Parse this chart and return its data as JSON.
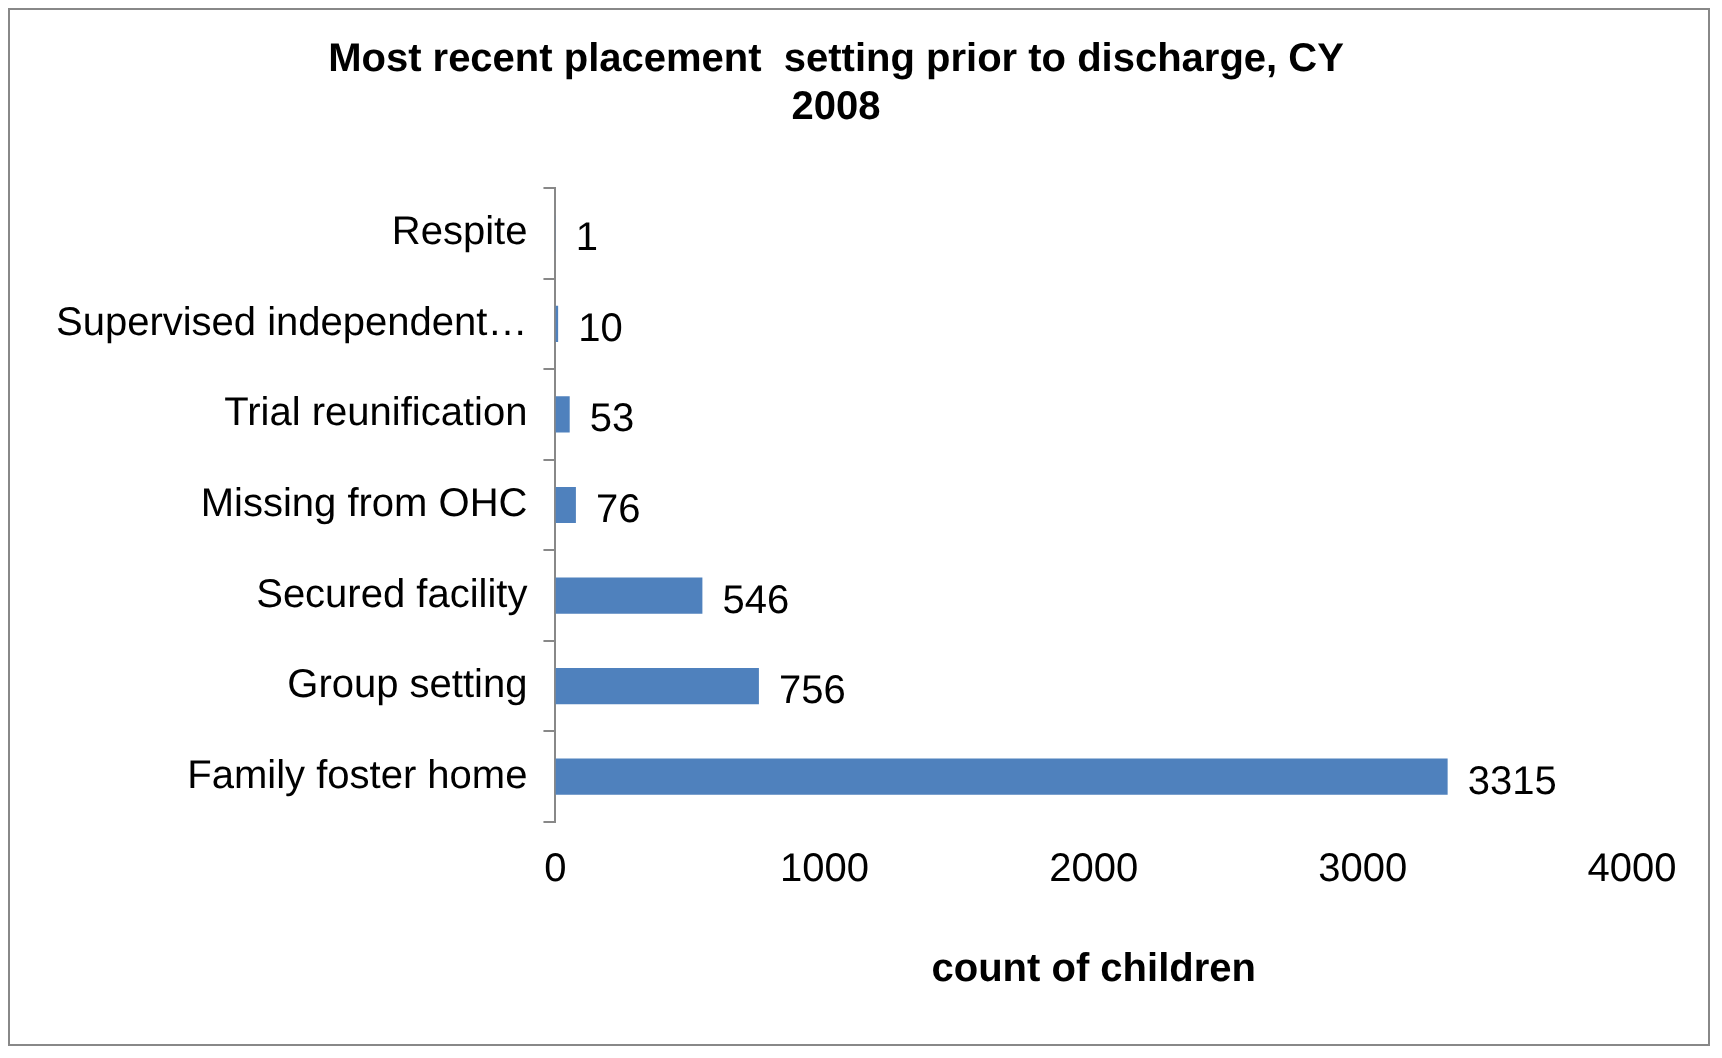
{
  "chart_data": {
    "type": "bar",
    "orientation": "horizontal",
    "title": "Most recent placement  setting prior to discharge, CY 2008",
    "categories": [
      "Respite",
      "Supervised independent…",
      "Trial reunification",
      "Missing from OHC",
      "Secured facility",
      "Group setting",
      "Family foster home"
    ],
    "values": [
      1,
      10,
      53,
      76,
      546,
      756,
      3315
    ],
    "color": "#4f81bd",
    "xlim": [
      0,
      4000
    ],
    "xticks": [
      0,
      1000,
      2000,
      3000,
      4000
    ],
    "xlabel": "count of children",
    "data_labels": true,
    "grid": false,
    "legend": false
  }
}
